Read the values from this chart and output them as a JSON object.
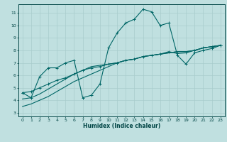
{
  "xlabel": "Humidex (Indice chaleur)",
  "bg_color": "#c0e0e0",
  "grid_color": "#a8cccc",
  "line_color": "#006666",
  "axis_color": "#004444",
  "xlim": [
    -0.5,
    23.5
  ],
  "ylim": [
    2.7,
    11.7
  ],
  "xticks": [
    0,
    1,
    2,
    3,
    4,
    5,
    6,
    7,
    8,
    9,
    10,
    11,
    12,
    13,
    14,
    15,
    16,
    17,
    18,
    19,
    20,
    21,
    22,
    23
  ],
  "yticks": [
    3,
    4,
    5,
    6,
    7,
    8,
    9,
    10,
    11
  ],
  "series": {
    "line1_x": [
      0,
      1,
      2,
      3,
      4,
      5,
      6,
      7,
      8,
      9,
      10,
      11,
      12,
      13,
      14,
      15,
      16,
      17,
      18,
      19,
      20,
      21,
      22,
      23
    ],
    "line1_y": [
      4.6,
      4.2,
      5.9,
      6.6,
      6.6,
      7.0,
      7.2,
      4.2,
      4.4,
      5.3,
      8.2,
      9.4,
      10.2,
      10.5,
      11.3,
      11.1,
      10.0,
      10.2,
      7.6,
      6.9,
      7.8,
      8.0,
      8.15,
      8.4
    ],
    "line2_x": [
      0,
      1,
      2,
      3,
      4,
      5,
      6,
      7,
      8,
      9,
      10,
      11,
      12,
      13,
      14,
      15,
      16,
      17,
      18,
      19,
      20,
      21,
      22,
      23
    ],
    "line2_y": [
      4.6,
      4.7,
      5.0,
      5.3,
      5.6,
      5.8,
      6.1,
      6.4,
      6.6,
      6.7,
      6.9,
      7.0,
      7.2,
      7.3,
      7.5,
      7.6,
      7.7,
      7.9,
      7.75,
      7.8,
      8.0,
      8.2,
      8.3,
      8.4
    ],
    "line3_x": [
      0,
      1,
      2,
      3,
      4,
      5,
      6,
      7,
      8,
      9,
      10,
      11,
      12,
      13,
      14,
      15,
      16,
      17,
      18,
      19,
      20,
      21,
      22,
      23
    ],
    "line3_y": [
      4.1,
      4.2,
      4.5,
      4.9,
      5.3,
      5.7,
      6.1,
      6.4,
      6.7,
      6.8,
      6.9,
      7.0,
      7.2,
      7.3,
      7.5,
      7.6,
      7.7,
      7.8,
      7.9,
      7.9,
      8.0,
      8.2,
      8.3,
      8.4
    ],
    "line4_x": [
      0,
      1,
      2,
      3,
      4,
      5,
      6,
      7,
      8,
      9,
      10,
      11,
      12,
      13,
      14,
      15,
      16,
      17,
      18,
      19,
      20,
      21,
      22,
      23
    ],
    "line4_y": [
      3.5,
      3.7,
      4.0,
      4.3,
      4.7,
      5.1,
      5.5,
      5.8,
      6.1,
      6.4,
      6.7,
      7.0,
      7.2,
      7.3,
      7.5,
      7.6,
      7.7,
      7.8,
      7.9,
      7.9,
      8.0,
      8.2,
      8.3,
      8.4
    ]
  }
}
